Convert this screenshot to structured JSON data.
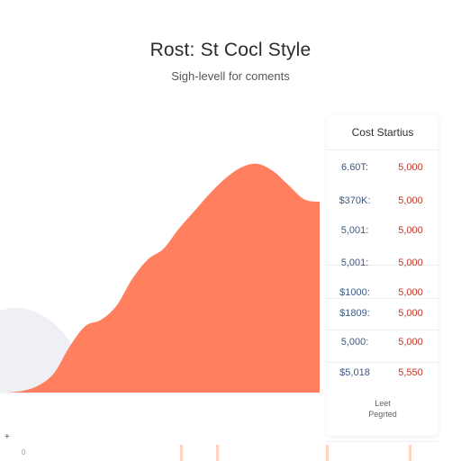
{
  "title": "Rost: St Cocl Style",
  "subtitle": "Sigh-levell for coments",
  "colors": {
    "area": "#ff7f5f",
    "area_light": "#ffb59a",
    "value_left": "#3d5a80",
    "value_right": "#c0392b",
    "ghost": "#eef0f6"
  },
  "chart_data": {
    "type": "area",
    "title": "Rost: St Cocl Style",
    "subtitle": "Sigh-levell for coments",
    "x": [
      0,
      1,
      2,
      3,
      4,
      5,
      6,
      7,
      8,
      9,
      10,
      11,
      12,
      13,
      14,
      15,
      16,
      17,
      18,
      19,
      20
    ],
    "values": [
      0,
      2,
      8,
      22,
      52,
      75,
      82,
      98,
      128,
      150,
      162,
      185,
      205,
      225,
      242,
      254,
      258,
      250,
      234,
      218,
      215
    ],
    "ylim": [
      0,
      270
    ],
    "grid": false,
    "legend": "none"
  },
  "table": {
    "header": "Cost Startius",
    "rows": [
      {
        "left": "6.60T:",
        "right": "5,000"
      },
      {
        "left": "$370K:",
        "right": "5,000"
      },
      {
        "left": "5,001:",
        "right": "5,000"
      },
      {
        "left": "5,001:",
        "right": "5,000"
      },
      {
        "left": "$1000:",
        "right": "5,000"
      },
      {
        "left": "$1809:",
        "right": "5,000"
      },
      {
        "left": "5,000:",
        "right": "5,000"
      },
      {
        "left": "$5,018",
        "right": "5,550"
      }
    ],
    "footer_line1": "Leet",
    "footer_line2": "Pegrted"
  },
  "corner_marks": {
    "plus": "+",
    "zero": "0"
  }
}
